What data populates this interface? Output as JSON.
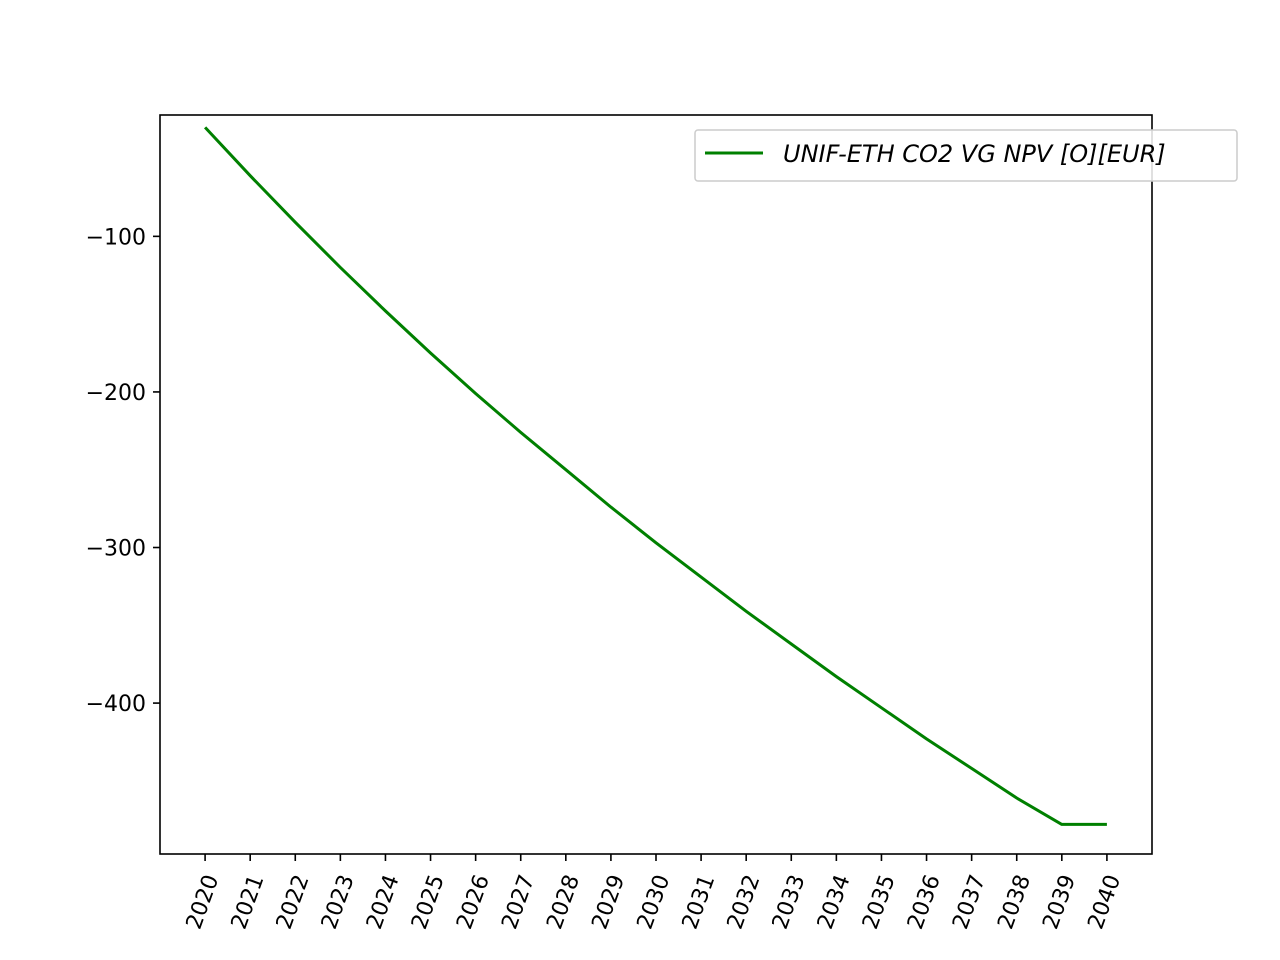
{
  "chart_data": {
    "type": "line",
    "title": "",
    "xlabel": "",
    "ylabel": "",
    "x": [
      2020,
      2021,
      2022,
      2023,
      2024,
      2025,
      2026,
      2027,
      2028,
      2029,
      2030,
      2031,
      2032,
      2033,
      2034,
      2035,
      2036,
      2037,
      2038,
      2039,
      2040
    ],
    "x_tick_labels": [
      "2020",
      "2021",
      "2022",
      "2023",
      "2024",
      "2025",
      "2026",
      "2027",
      "2028",
      "2029",
      "2030",
      "2031",
      "2032",
      "2033",
      "2034",
      "2035",
      "2036",
      "2037",
      "2038",
      "2039",
      "2040"
    ],
    "y_ticks": [
      -100,
      -200,
      -300,
      -400
    ],
    "y_tick_labels": [
      "−100",
      "−200",
      "−300",
      "−400"
    ],
    "ylim": [
      -497,
      -22
    ],
    "xlim": [
      2019,
      2041
    ],
    "grid": false,
    "legend_position": "top-right",
    "series": [
      {
        "name": "UNIF-ETH CO2 VG NPV [O][EUR]",
        "color": "#008000",
        "values": [
          -30,
          -61,
          -91,
          -120,
          -148,
          -175,
          -201,
          -226,
          -250,
          -274,
          -297,
          -319,
          -341,
          -362,
          -383,
          -403,
          -423,
          -442,
          -461,
          -478,
          -478
        ]
      }
    ]
  }
}
